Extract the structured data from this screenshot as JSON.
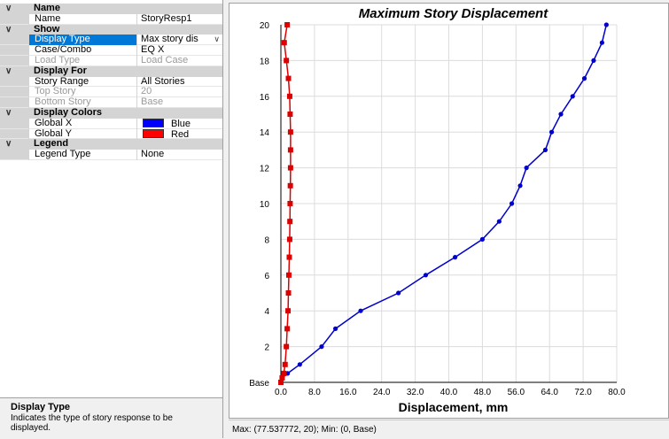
{
  "property_grid": {
    "categories": [
      {
        "label": "Name",
        "properties": [
          {
            "name": "Name",
            "value": "StoryResp1",
            "state": "normal"
          }
        ]
      },
      {
        "label": "Show",
        "properties": [
          {
            "name": "Display Type",
            "value": "Max story dis",
            "state": "selected",
            "dropdown": true
          },
          {
            "name": "Case/Combo",
            "value": "EQ X",
            "state": "normal"
          },
          {
            "name": "Load Type",
            "value": "Load Case",
            "state": "disabled"
          }
        ]
      },
      {
        "label": "Display For",
        "properties": [
          {
            "name": "Story Range",
            "value": "All Stories",
            "state": "normal"
          },
          {
            "name": "Top Story",
            "value": "20",
            "state": "disabled"
          },
          {
            "name": "Bottom Story",
            "value": "Base",
            "state": "disabled"
          }
        ]
      },
      {
        "label": "Display Colors",
        "properties": [
          {
            "name": "Global X",
            "value": "Blue",
            "state": "normal",
            "swatch": "#0000ff"
          },
          {
            "name": "Global Y",
            "value": "Red",
            "state": "normal",
            "swatch": "#ff0000"
          }
        ]
      },
      {
        "label": "Legend",
        "properties": [
          {
            "name": "Legend Type",
            "value": "None",
            "state": "normal"
          }
        ]
      }
    ],
    "description": {
      "title": "Display Type",
      "text": "Indicates the type of story response to be displayed."
    }
  },
  "status": {
    "text": "Max: (77.537772, 20);   Min: (0, Base)"
  },
  "chart_data": {
    "type": "line",
    "title": "Maximum Story Displacement",
    "xlabel": "Displacement, mm",
    "ylabel": "",
    "xlim": [
      0,
      80
    ],
    "ylim": [
      0,
      20
    ],
    "x_ticks": [
      0,
      8,
      16,
      24,
      32,
      40,
      48,
      56,
      64,
      72,
      80
    ],
    "x_tick_labels": [
      "0.0",
      "8.0",
      "16.0",
      "24.0",
      "32.0",
      "40.0",
      "48.0",
      "56.0",
      "64.0",
      "72.0",
      "80.0"
    ],
    "y_ticks": [
      0,
      2,
      4,
      6,
      8,
      10,
      12,
      14,
      16,
      18,
      20
    ],
    "y_tick_labels": [
      "Base",
      "2",
      "4",
      "6",
      "8",
      "10",
      "12",
      "14",
      "16",
      "18",
      "20"
    ],
    "grid": true,
    "series": [
      {
        "name": "Global X",
        "color": "#0000cc",
        "marker": "circle",
        "points": [
          [
            0,
            0
          ],
          [
            0.3,
            0.25
          ],
          [
            1.6,
            0.5
          ],
          [
            4.5,
            1
          ],
          [
            9.7,
            2
          ],
          [
            13,
            3
          ],
          [
            19,
            4
          ],
          [
            28,
            5
          ],
          [
            34.5,
            6
          ],
          [
            41.5,
            7
          ],
          [
            48,
            8
          ],
          [
            52,
            9
          ],
          [
            55,
            10
          ],
          [
            57,
            11
          ],
          [
            58.5,
            12
          ],
          [
            63,
            13
          ],
          [
            64.5,
            14
          ],
          [
            66.7,
            15
          ],
          [
            69.5,
            16
          ],
          [
            72.3,
            17
          ],
          [
            74.5,
            18
          ],
          [
            76.5,
            19
          ],
          [
            77.537772,
            20
          ]
        ]
      },
      {
        "name": "Global Y",
        "color": "#dd0000",
        "marker": "square",
        "points": [
          [
            0,
            0
          ],
          [
            0.3,
            0.25
          ],
          [
            0.7,
            0.5
          ],
          [
            1,
            1
          ],
          [
            1.3,
            2
          ],
          [
            1.5,
            3
          ],
          [
            1.7,
            4
          ],
          [
            1.8,
            5
          ],
          [
            1.9,
            6
          ],
          [
            2,
            7
          ],
          [
            2.1,
            8
          ],
          [
            2.15,
            9
          ],
          [
            2.2,
            10
          ],
          [
            2.25,
            11
          ],
          [
            2.3,
            12
          ],
          [
            2.3,
            13
          ],
          [
            2.3,
            14
          ],
          [
            2.2,
            15
          ],
          [
            2.1,
            16
          ],
          [
            1.8,
            17
          ],
          [
            1.3,
            18
          ],
          [
            0.8,
            19
          ],
          [
            1.5,
            20
          ]
        ]
      }
    ]
  }
}
